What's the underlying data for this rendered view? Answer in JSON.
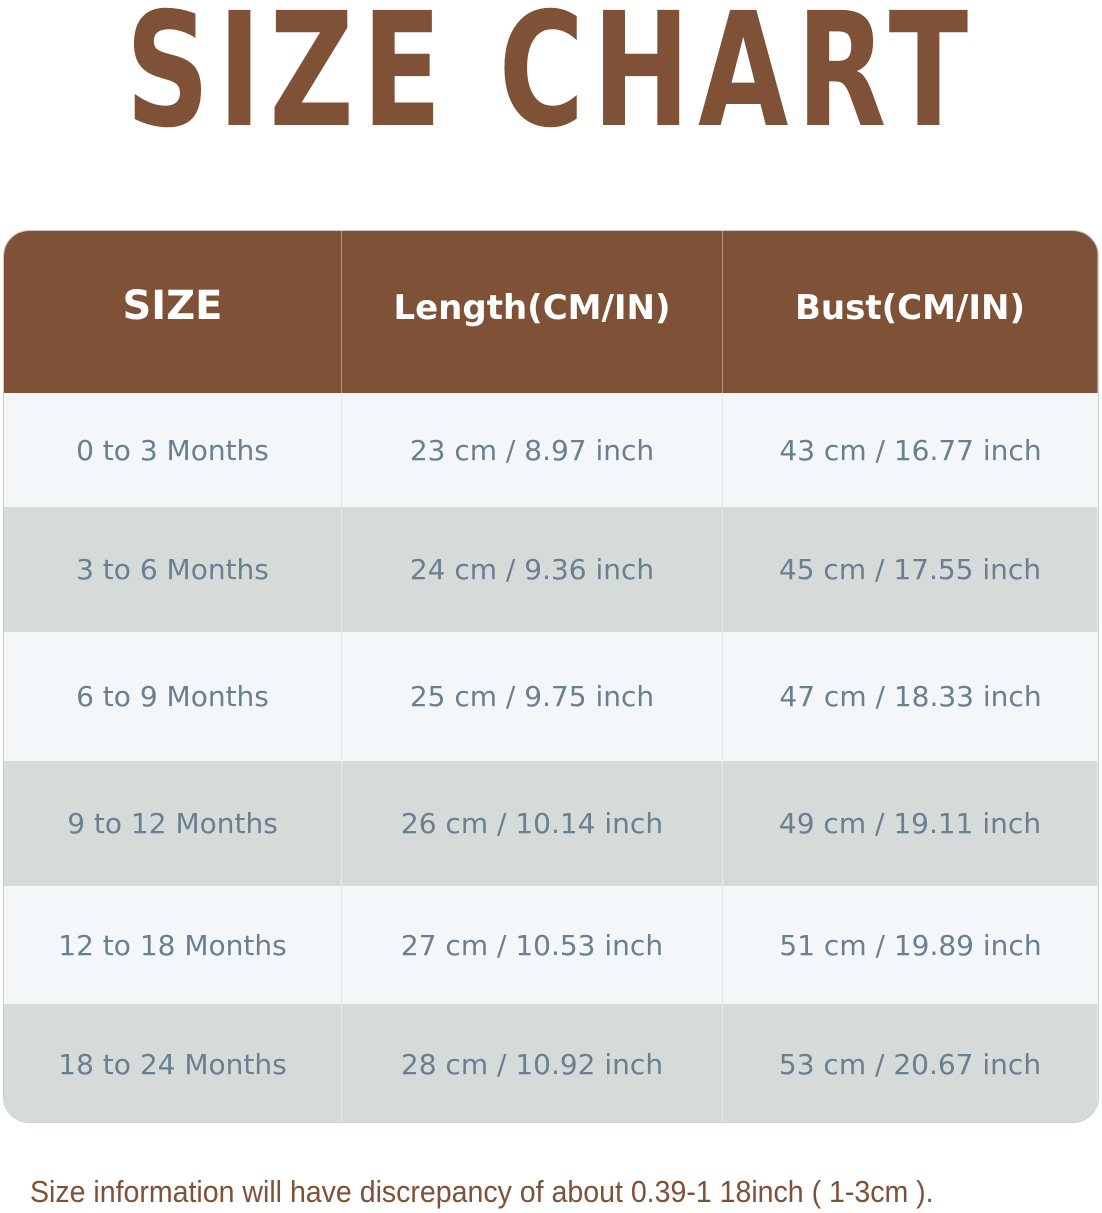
{
  "title": "SIZE CHART",
  "colors": {
    "brand": "#7f5136",
    "row_light": "#f3f7f9",
    "row_gray": "#d5dbd9",
    "cell_text": "#6a7f90"
  },
  "table": {
    "headers": [
      "SIZE",
      "Length(CM/IN)",
      "Bust(CM/IN)"
    ],
    "rows": [
      [
        "0 to 3 Months",
        "23 cm / 8.97 inch",
        "43 cm / 16.77 inch"
      ],
      [
        "3 to 6 Months",
        "24 cm / 9.36 inch",
        "45 cm / 17.55 inch"
      ],
      [
        "6 to 9 Months",
        "25 cm / 9.75 inch",
        "47 cm / 18.33 inch"
      ],
      [
        "9 to 12 Months",
        "26 cm / 10.14 inch",
        "49 cm / 19.11 inch"
      ],
      [
        "12 to 18 Months",
        "27 cm / 10.53 inch",
        "51 cm / 19.89 inch"
      ],
      [
        "18 to 24 Months",
        "28 cm / 10.92 inch",
        "53 cm / 20.67 inch"
      ]
    ]
  },
  "note": "Size information will have discrepancy of about 0.39-1 18inch ( 1-3cm )."
}
